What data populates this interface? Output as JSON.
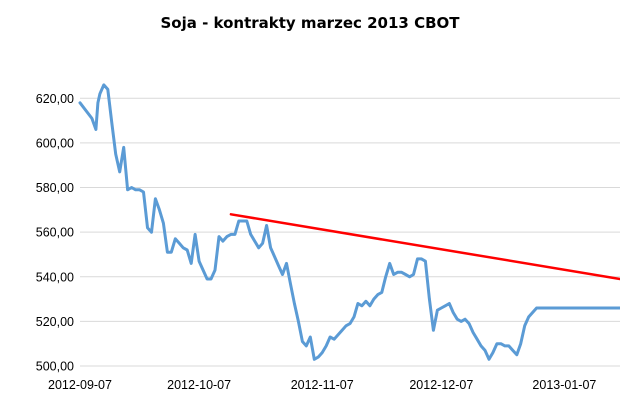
{
  "chart_data": {
    "type": "line",
    "title": "Soja - kontrakty marzec 2013 CBOT",
    "xlabel": "",
    "ylabel": "",
    "ylim": [
      500,
      630
    ],
    "yticks": [
      "500,00",
      "520,00",
      "540,00",
      "560,00",
      "580,00",
      "600,00",
      "620,00"
    ],
    "ytick_values": [
      500,
      520,
      540,
      560,
      580,
      600,
      620
    ],
    "xticks": [
      "2012-09-07",
      "2012-10-07",
      "2012-11-07",
      "2012-12-07",
      "2013-01-07"
    ],
    "xtick_days": [
      0,
      30,
      61,
      91,
      122
    ],
    "xlim_days": [
      0,
      136
    ],
    "grid": {
      "horizontal": true,
      "vertical": false
    },
    "legend": "none",
    "series": [
      {
        "color": "#5B9BD5",
        "x_days": [
          0,
          3,
          4,
          4.5,
          5,
          6,
          7,
          8,
          9,
          10,
          11,
          12,
          13,
          14,
          15,
          16,
          17,
          18,
          19,
          20,
          21,
          22,
          23,
          24,
          25,
          26,
          27,
          28,
          29,
          30,
          31,
          32,
          33,
          34,
          35,
          36,
          37,
          38,
          39,
          40,
          41,
          42,
          43,
          44,
          45,
          46,
          47,
          48,
          49,
          50,
          51,
          52,
          53,
          54,
          55,
          56,
          57,
          58,
          59,
          60,
          61,
          62,
          63,
          64,
          65,
          66,
          67,
          68,
          69,
          70,
          71,
          72,
          73,
          74,
          75,
          76,
          77,
          78,
          79,
          80,
          81,
          82,
          83,
          84,
          85,
          86,
          87,
          88,
          89,
          90,
          91,
          92,
          93,
          94,
          95,
          96,
          97,
          98,
          99,
          100,
          101,
          102,
          103,
          104,
          105,
          106,
          107,
          108,
          109,
          110,
          111,
          112,
          113,
          114,
          115,
          116,
          117,
          118,
          119,
          120,
          121,
          122,
          123,
          124,
          125,
          126,
          127,
          128,
          129,
          130,
          131,
          132,
          133,
          134,
          135,
          136
        ],
        "values": [
          618,
          611,
          606,
          618,
          622,
          626,
          624,
          609,
          595,
          587,
          598,
          579,
          580,
          579,
          579,
          578,
          562,
          560,
          575,
          570,
          564,
          551,
          551,
          557,
          555,
          553,
          552,
          546,
          559,
          547,
          543,
          539,
          539,
          543,
          558,
          556,
          558,
          559,
          559,
          565,
          565,
          565,
          559,
          556,
          553,
          555,
          563,
          553,
          549,
          545,
          541,
          546,
          537,
          528,
          520,
          511,
          509,
          513,
          503,
          504,
          506,
          509,
          513,
          512,
          514,
          516,
          518,
          519,
          522,
          528,
          527,
          529,
          527,
          530,
          532,
          533,
          540,
          546,
          541,
          542,
          542,
          541,
          540,
          541,
          548,
          548,
          547,
          530,
          516,
          525,
          526,
          527,
          528,
          524,
          521,
          520,
          521,
          519,
          515,
          512,
          509,
          507,
          503,
          506,
          510,
          510,
          509,
          509,
          507,
          505,
          510,
          518,
          522,
          524,
          526,
          526,
          526,
          526,
          526,
          526,
          526,
          526,
          526,
          526,
          526,
          526,
          526,
          526,
          526,
          526,
          526,
          526,
          526,
          526,
          526,
          526
        ]
      },
      {
        "color": "#FF0000",
        "x_days": [
          38,
          136
        ],
        "values": [
          568,
          539
        ]
      }
    ]
  }
}
